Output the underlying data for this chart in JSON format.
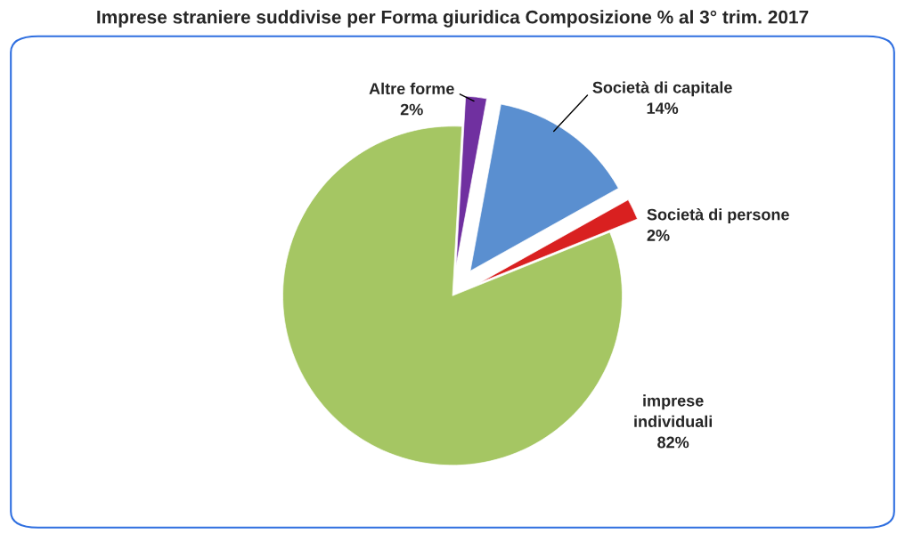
{
  "chart_data": {
    "type": "pie",
    "title": "Imprese straniere suddivise per Forma giuridica Composizione % al 3° trim. 2017",
    "categories": [
      "Società di persone",
      "Società di capitale",
      "Altre forme",
      "imprese individuali"
    ],
    "values": [
      2,
      14,
      2,
      82
    ],
    "colors": [
      "#d92020",
      "#5a8fd0",
      "#7030a0",
      "#a5c663"
    ],
    "value_labels": [
      "2%",
      "14%",
      "2%",
      "82%"
    ],
    "legend": false
  }
}
